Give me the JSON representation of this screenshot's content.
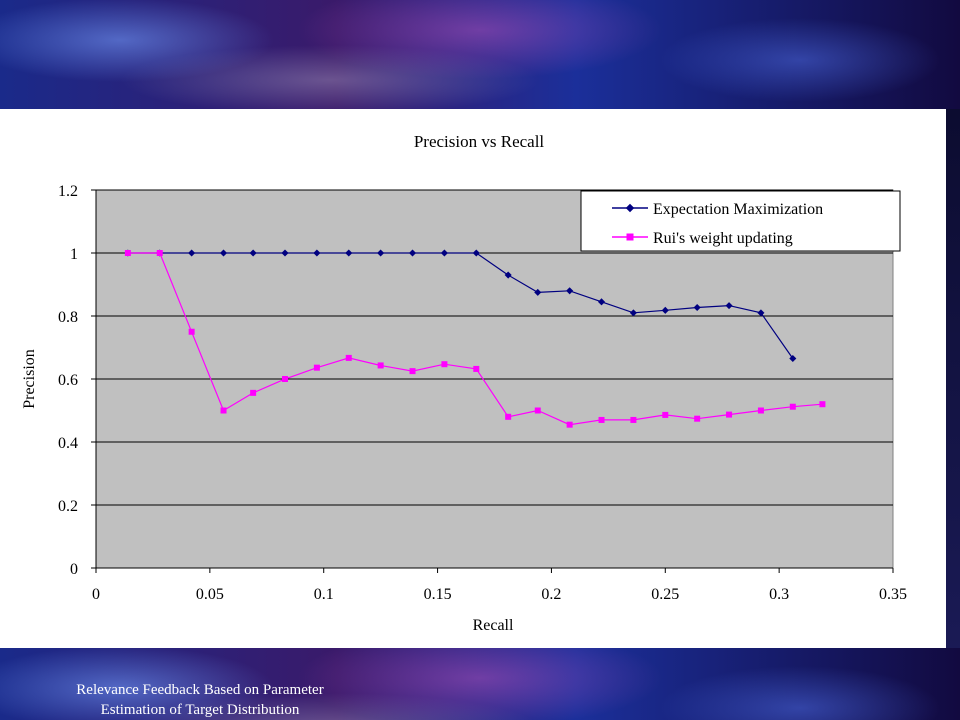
{
  "footer": {
    "caption_line1": "Relevance Feedback Based on Parameter",
    "caption_line2": "Estimation of Target Distribution"
  },
  "chart_data": {
    "type": "line",
    "title": "Precision vs Recall",
    "xlabel": "Recall",
    "ylabel": "Precision",
    "xlim": [
      0,
      0.35
    ],
    "ylim": [
      0,
      1.2
    ],
    "x_ticks": [
      "0",
      "0.05",
      "0.1",
      "0.15",
      "0.2",
      "0.25",
      "0.3",
      "0.35"
    ],
    "y_ticks": [
      "0",
      "0.2",
      "0.4",
      "0.6",
      "0.8",
      "1",
      "1.2"
    ],
    "grid": true,
    "legend": "top-right",
    "plot_background": "#C0C0C0",
    "series": [
      {
        "name": "Expectation Maximization",
        "color": "#000080",
        "marker": "diamond",
        "x": [
          0.014,
          0.028,
          0.042,
          0.056,
          0.069,
          0.083,
          0.097,
          0.111,
          0.125,
          0.139,
          0.153,
          0.167,
          0.181,
          0.194,
          0.208,
          0.222,
          0.236,
          0.25,
          0.264,
          0.278,
          0.292,
          0.306
        ],
        "y": [
          1.0,
          1.0,
          1.0,
          1.0,
          1.0,
          1.0,
          1.0,
          1.0,
          1.0,
          1.0,
          1.0,
          1.0,
          0.93,
          0.875,
          0.88,
          0.845,
          0.81,
          0.818,
          0.827,
          0.833,
          0.81,
          0.665
        ]
      },
      {
        "name": "Rui's weight updating",
        "color": "#FF00FF",
        "marker": "square",
        "x": [
          0.014,
          0.028,
          0.042,
          0.056,
          0.069,
          0.083,
          0.097,
          0.111,
          0.125,
          0.139,
          0.153,
          0.167,
          0.181,
          0.194,
          0.208,
          0.222,
          0.236,
          0.25,
          0.264,
          0.278,
          0.292,
          0.306,
          0.319
        ],
        "y": [
          1.0,
          1.0,
          0.75,
          0.5,
          0.556,
          0.6,
          0.636,
          0.667,
          0.643,
          0.625,
          0.647,
          0.632,
          0.48,
          0.5,
          0.455,
          0.47,
          0.47,
          0.486,
          0.474,
          0.487,
          0.5,
          0.512,
          0.52
        ]
      }
    ]
  }
}
